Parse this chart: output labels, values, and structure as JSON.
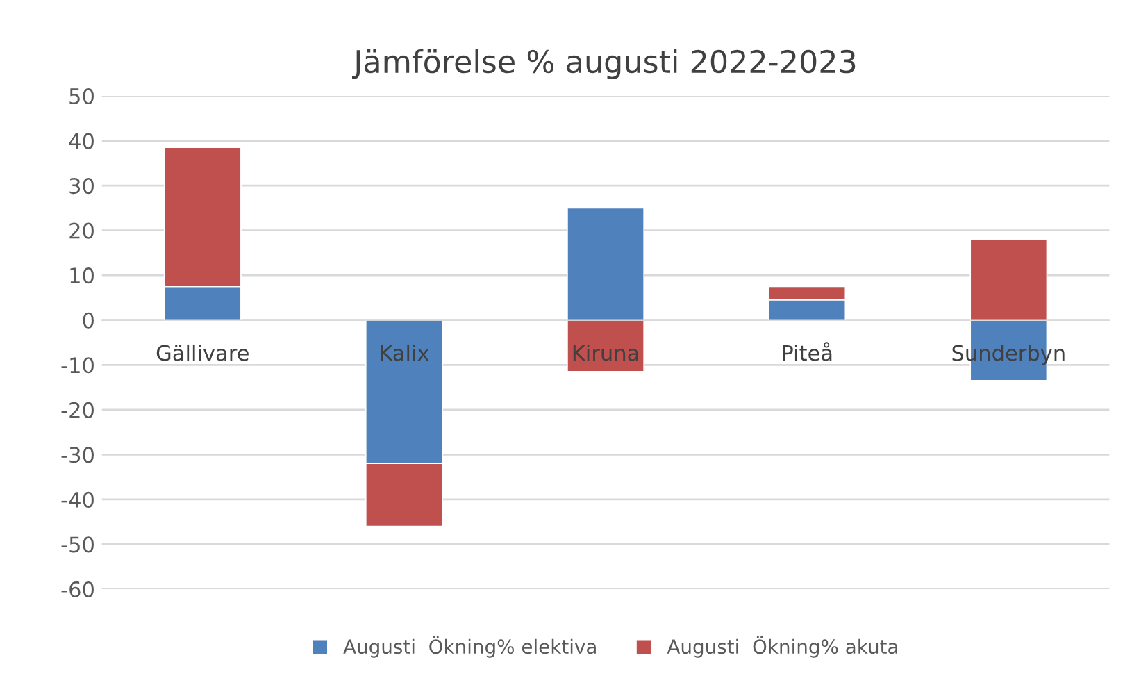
{
  "chart_data": {
    "type": "bar",
    "title": "Jämförelse % augusti 2022-2023",
    "stacked": true,
    "categories": [
      "Gällivare",
      "Kalix",
      "Kiruna",
      "Piteå",
      "Sunderbyn"
    ],
    "series": [
      {
        "name": "Augusti  Ökning% elektiva",
        "color": "#4f81bd",
        "values": [
          7.5,
          -32,
          25,
          4.5,
          -13.5
        ]
      },
      {
        "name": "Augusti  Ökning% akuta",
        "color": "#c0504d",
        "values": [
          31,
          -14,
          -11.5,
          3,
          18
        ]
      }
    ],
    "ylim": [
      -60,
      50
    ],
    "yticks": [
      -60,
      -50,
      -40,
      -30,
      -20,
      -10,
      0,
      10,
      20,
      30,
      40,
      50
    ],
    "grid": "y",
    "legend": "bottom"
  }
}
